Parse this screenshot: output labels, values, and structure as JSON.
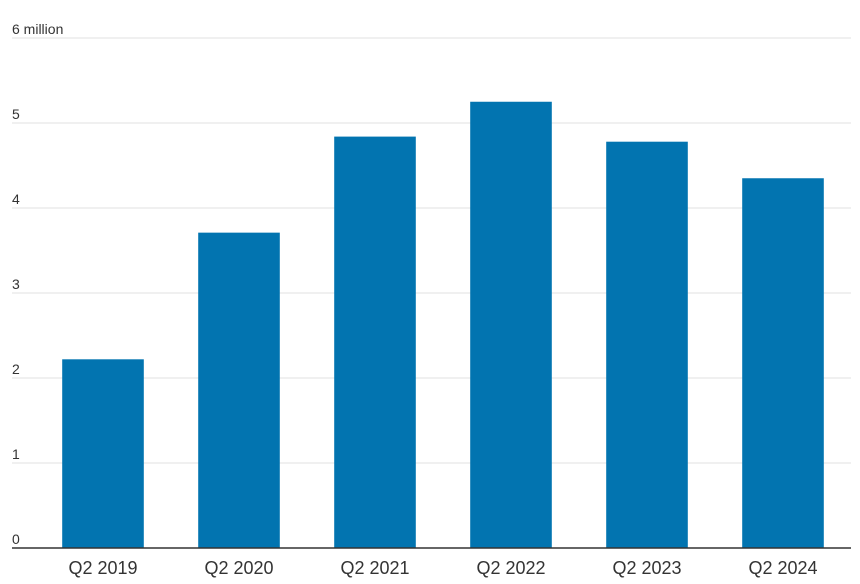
{
  "chart_data": {
    "type": "bar",
    "categories": [
      "Q2 2019",
      "Q2 2020",
      "Q2 2021",
      "Q2 2022",
      "Q2 2023",
      "Q2 2024"
    ],
    "values": [
      2.22,
      3.71,
      4.84,
      5.25,
      4.78,
      4.35
    ],
    "color": "#0274b0",
    "ylim": [
      0,
      6
    ],
    "yticks": [
      0,
      1,
      2,
      3,
      4,
      5,
      {
        "value": 6,
        "label": "6 million"
      }
    ],
    "grid": true
  }
}
